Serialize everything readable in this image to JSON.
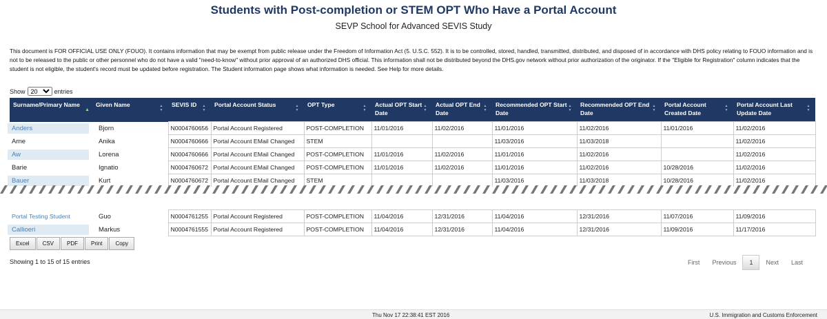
{
  "header": {
    "title": "Students with Post-completion or STEM OPT Who Have a Portal Account",
    "subtitle": "SEVP School for Advanced SEVIS Study"
  },
  "notice": "This document is FOR OFFICIAL USE ONLY (FOUO). It contains information that may be exempt from public release under the Freedom of Information Act (5. U.S.C. 552). It is to be controlled, stored, handled, transmitted, distributed, and disposed of in accordance with DHS policy relating to FOUO information and is not to be released to the public or other personnel who do not have a valid \"need-to-know\" without prior approval of an authorized DHS official. This information shall not be distributed beyond the DHS.gov network without prior authorization of the originator. If the \"Eligible for Registration\" column indicates that the student is not eligible, the student's record must be updated before registration. The Student information page shows what information is needed. See Help for more details.",
  "show_entries": {
    "prefix": "Show",
    "value": "20",
    "suffix": "entries"
  },
  "columns": [
    "Surname/Primary Name",
    "Given Name",
    "SEVIS ID",
    "Portal Account Status",
    "OPT Type",
    "Actual OPT Start Date",
    "Actual OPT End Date",
    "Recommended OPT Start Date",
    "Recommended OPT End Date",
    "Portal Account Created Date",
    "Portal Account Last Update Date"
  ],
  "rows_top": [
    {
      "surname": "Anders",
      "given": "Bjorn",
      "sevis": "N0004760656",
      "status": "Portal Account Registered",
      "type": "POST-COMPLETION",
      "a_start": "11/01/2016",
      "a_end": "11/02/2016",
      "r_start": "11/01/2016",
      "r_end": "11/02/2016",
      "created": "11/01/2016",
      "updated": "11/02/2016"
    },
    {
      "surname": "Arne",
      "given": "Anika",
      "sevis": "N0004760666",
      "status": "Portal Account EMail Changed",
      "type": "STEM",
      "a_start": "",
      "a_end": "",
      "r_start": "11/03/2016",
      "r_end": "11/03/2018",
      "created": "",
      "updated": "11/02/2016"
    },
    {
      "surname": "Aw",
      "given": "Lorena",
      "sevis": "N0004760666",
      "status": "Portal Account EMail Changed",
      "type": "POST-COMPLETION",
      "a_start": "11/01/2016",
      "a_end": "11/02/2016",
      "r_start": "11/01/2016",
      "r_end": "11/02/2016",
      "created": "",
      "updated": "11/02/2016"
    },
    {
      "surname": "Barie",
      "given": "Ignatio",
      "sevis": "N0004760672",
      "status": "Portal Account EMail Changed",
      "type": "POST-COMPLETION",
      "a_start": "11/01/2016",
      "a_end": "11/02/2016",
      "r_start": "11/01/2016",
      "r_end": "11/02/2016",
      "created": "10/28/2016",
      "updated": "11/02/2016"
    },
    {
      "surname": "Bauer",
      "given": "Kurt",
      "sevis": "N0004760672",
      "status": "Portal Account EMail Changed",
      "type": "STEM",
      "a_start": "",
      "a_end": "",
      "r_start": "11/03/2016",
      "r_end": "11/03/2018",
      "created": "10/28/2016",
      "updated": "11/02/2016"
    }
  ],
  "rows_bottom": [
    {
      "surname": "Portal Testing Student",
      "given": "Guo",
      "sevis": "N0004761255",
      "status": "Portal Account Registered",
      "type": "POST-COMPLETION",
      "a_start": "11/04/2016",
      "a_end": "12/31/2016",
      "r_start": "11/04/2016",
      "r_end": "12/31/2016",
      "created": "11/07/2016",
      "updated": "11/09/2016"
    },
    {
      "surname": "Callioeri",
      "given": "Markus",
      "sevis": "N0004761555",
      "status": "Portal Account Registered",
      "type": "POST-COMPLETION",
      "a_start": "11/04/2016",
      "a_end": "12/31/2016",
      "r_start": "11/04/2016",
      "r_end": "12/31/2016",
      "created": "11/09/2016",
      "updated": "11/17/2016"
    }
  ],
  "buttons": [
    "Excel",
    "CSV",
    "PDF",
    "Print",
    "Copy"
  ],
  "info": "Showing 1 to 15 of 15 entries",
  "pager": {
    "first": "First",
    "previous": "Previous",
    "current": "1",
    "next": "Next",
    "last": "Last"
  },
  "footer": {
    "timestamp": "Thu Nov 17 22:38:41 EST 2016",
    "agency": "U.S. Immigration and Customs Enforcement"
  },
  "colors": {
    "header_bg": "#1f3864",
    "highlight_bg": "#dfeaf3",
    "highlight_text": "#4d7fb2"
  }
}
